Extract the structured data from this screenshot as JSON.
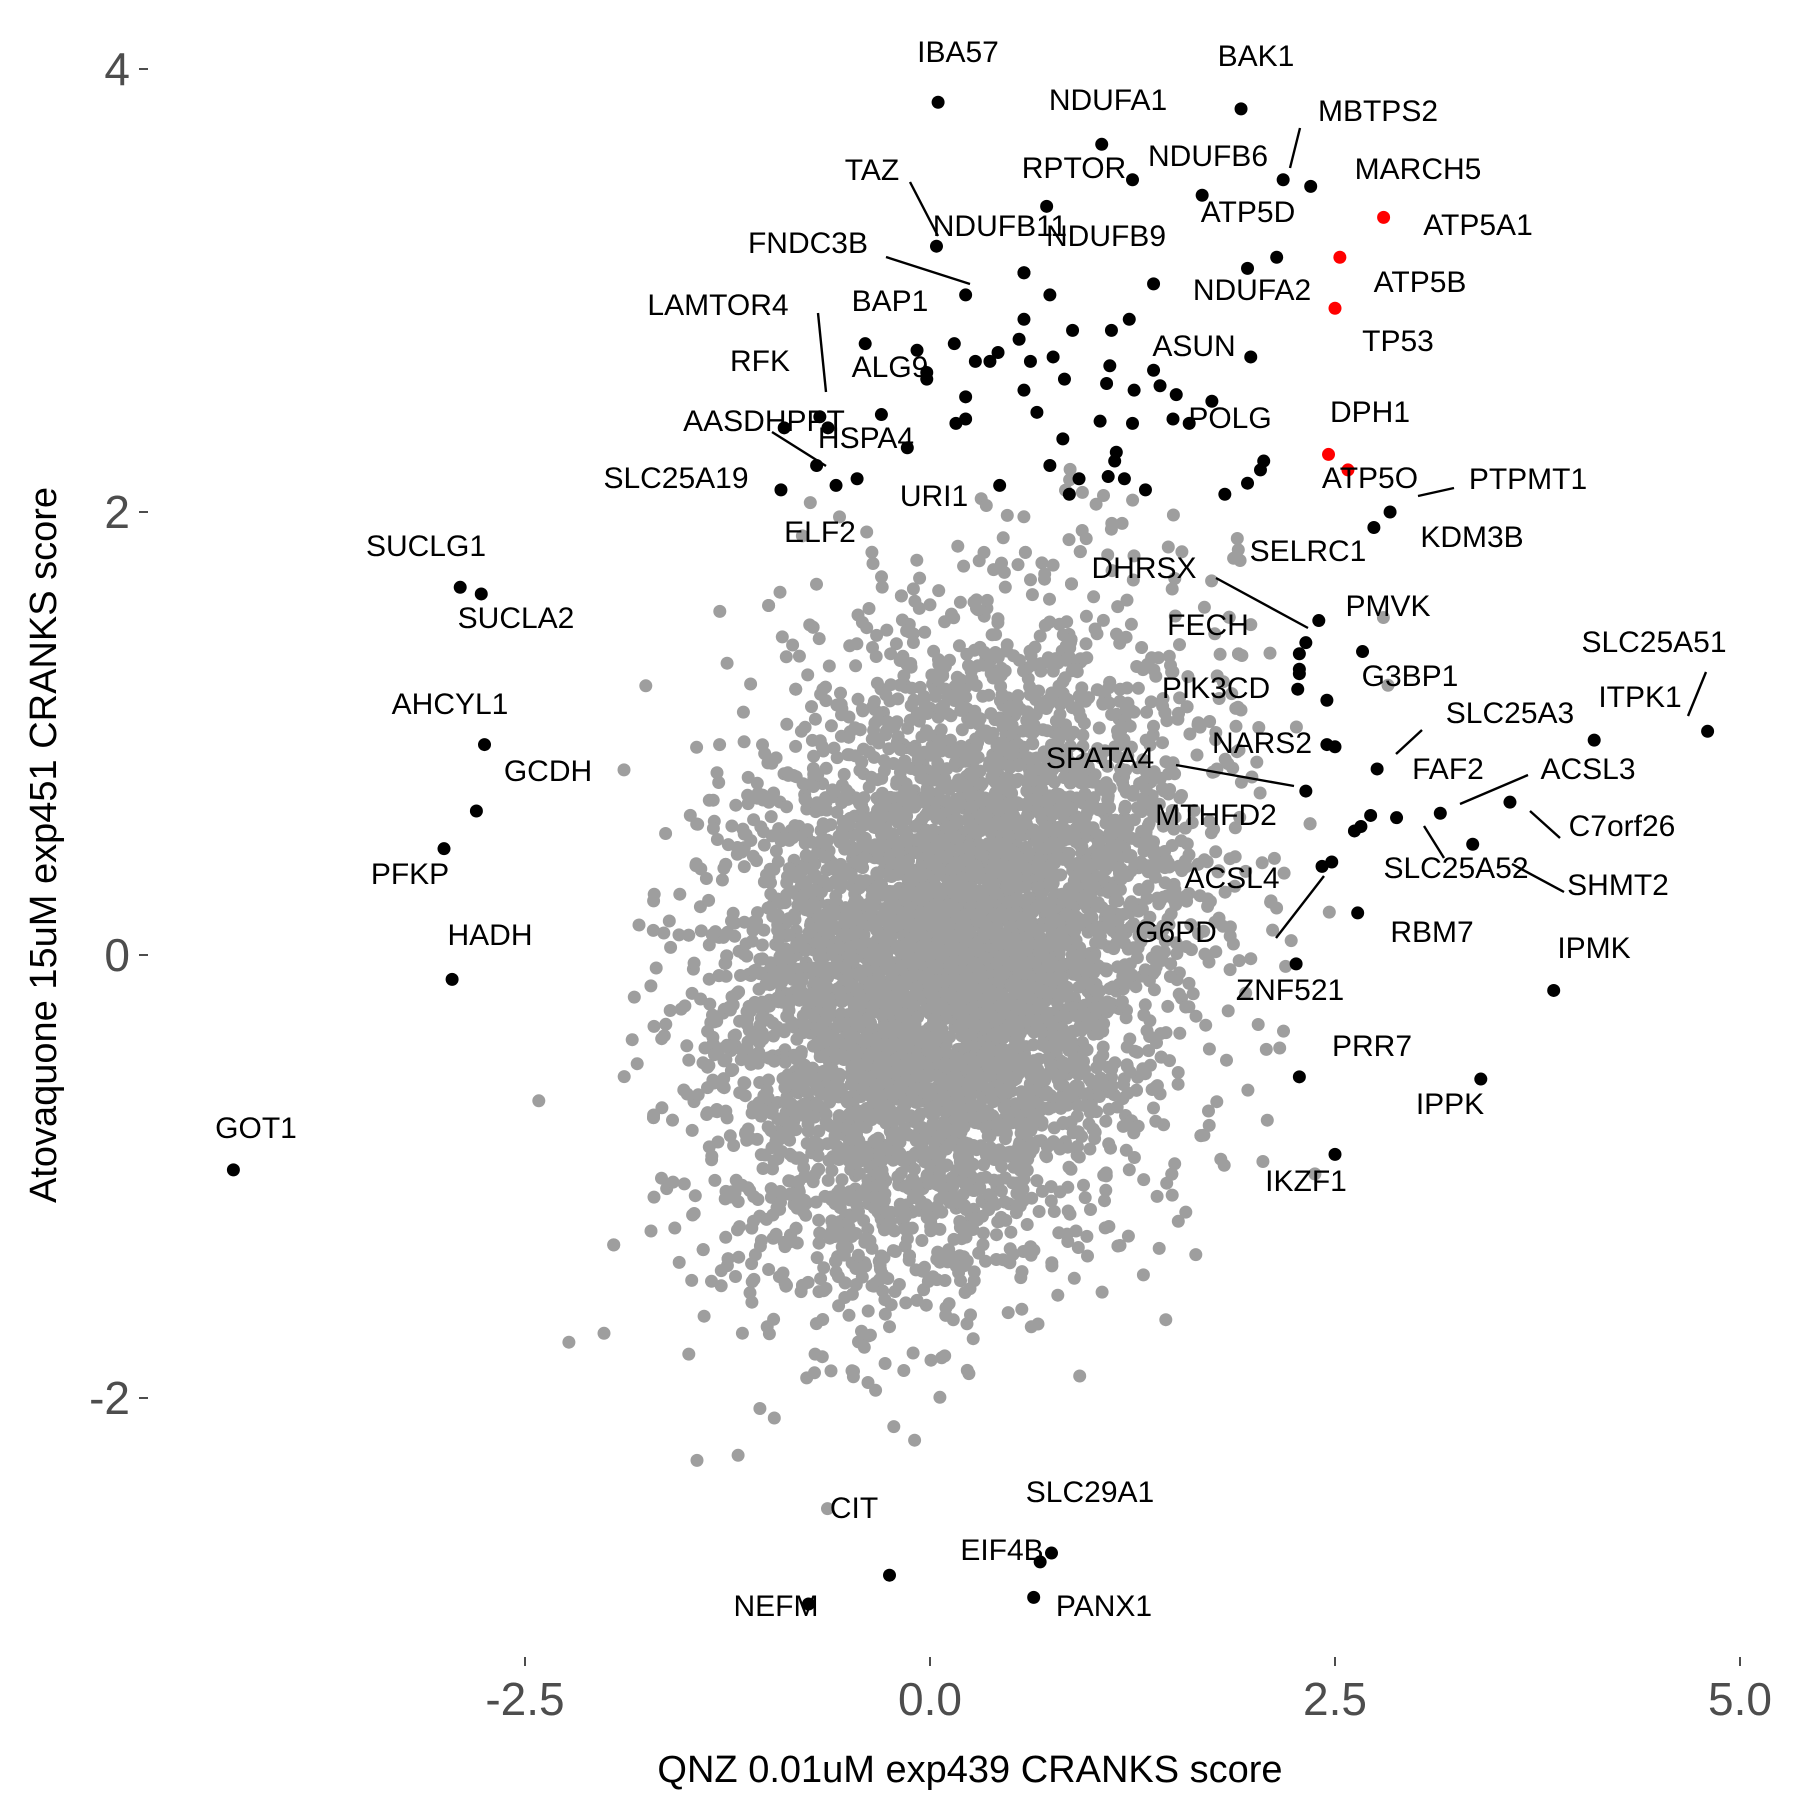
{
  "chart_data": {
    "type": "scatter",
    "xlabel": "QNZ 0.01uM exp439 CRANKS score",
    "ylabel": "Atovaquone 15uM exp451 CRANKS score",
    "xlim": [
      -4.6,
      5.1
    ],
    "ylim": [
      -3.25,
      4.3
    ],
    "xticks": [
      {
        "value": -2.5,
        "label": "-2.5"
      },
      {
        "value": 0,
        "label": "0.0"
      },
      {
        "value": 2.5,
        "label": "2.5"
      },
      {
        "value": 5,
        "label": "5.0"
      }
    ],
    "yticks": [
      {
        "value": -2,
        "label": "-2"
      },
      {
        "value": 0,
        "label": "0"
      },
      {
        "value": 2,
        "label": "2"
      },
      {
        "value": 4,
        "label": "4"
      }
    ],
    "grid": false,
    "legend": "none",
    "colors": {
      "background": "#ffffff",
      "bulk": "#9e9e9e",
      "highlight": "#000000",
      "accent": "#ff0000"
    },
    "background_cloud": {
      "description_of_distribution": "dense gray cloud of genes centred near (0.2, 0.0)",
      "center": [
        0.15,
        0.0
      ],
      "sd": [
        0.7,
        0.7
      ],
      "correlation": 0.25,
      "n": 6000
    },
    "labeled_points": [
      {
        "gene": "IBA57",
        "x": 0.05,
        "y": 3.85,
        "color": "black"
      },
      {
        "gene": "BAK1",
        "x": 1.92,
        "y": 3.82,
        "color": "black"
      },
      {
        "gene": "NDUFA1",
        "x": 1.06,
        "y": 3.66,
        "color": "black"
      },
      {
        "gene": "MBTPS2",
        "x": 2.18,
        "y": 3.5,
        "color": "black"
      },
      {
        "gene": "NDUFB6",
        "x": 1.68,
        "y": 3.43,
        "color": "black"
      },
      {
        "gene": "MARCH5",
        "x": 2.35,
        "y": 3.47,
        "color": "black"
      },
      {
        "gene": "TAZ",
        "x": 0.04,
        "y": 3.2,
        "color": "black"
      },
      {
        "gene": "RPTOR",
        "x": 0.72,
        "y": 3.38,
        "color": "black"
      },
      {
        "gene": "ATP5A1",
        "x": 2.8,
        "y": 3.33,
        "color": "red"
      },
      {
        "gene": "ATP5D",
        "x": 2.14,
        "y": 3.15,
        "color": "black"
      },
      {
        "gene": "NDUFB11",
        "x": 0.58,
        "y": 3.08,
        "color": "black"
      },
      {
        "gene": "NDUFB9",
        "x": 1.38,
        "y": 3.03,
        "color": "black"
      },
      {
        "gene": "FNDC3B",
        "x": 0.22,
        "y": 2.98,
        "color": "black"
      },
      {
        "gene": "ATP5B",
        "x": 2.53,
        "y": 3.15,
        "color": "red"
      },
      {
        "gene": "NDUFA2",
        "x": 1.96,
        "y": 3.1,
        "color": "black"
      },
      {
        "gene": "TP53",
        "x": 2.5,
        "y": 2.92,
        "color": "red"
      },
      {
        "gene": "LAMTOR4",
        "x": -0.63,
        "y": 2.38,
        "color": "black"
      },
      {
        "gene": "BAP1",
        "x": -0.4,
        "y": 2.76,
        "color": "black"
      },
      {
        "gene": "ASUN",
        "x": 1.98,
        "y": 2.7,
        "color": "black"
      },
      {
        "gene": "RFK",
        "x": -0.68,
        "y": 2.43,
        "color": "black"
      },
      {
        "gene": "ALG9",
        "x": -0.02,
        "y": 2.6,
        "color": "black"
      },
      {
        "gene": "POLG",
        "x": 1.6,
        "y": 2.4,
        "color": "black"
      },
      {
        "gene": "AASDHPPT",
        "x": -0.9,
        "y": 2.38,
        "color": "black"
      },
      {
        "gene": "HSPA4",
        "x": -0.7,
        "y": 2.21,
        "color": "black"
      },
      {
        "gene": "DPH1",
        "x": 2.46,
        "y": 2.26,
        "color": "red"
      },
      {
        "gene": "SLC25A19",
        "x": -0.92,
        "y": 2.1,
        "color": "black"
      },
      {
        "gene": "URI1",
        "x": -0.45,
        "y": 2.15,
        "color": "black"
      },
      {
        "gene": "ATP5O",
        "x": 2.58,
        "y": 2.19,
        "color": "red"
      },
      {
        "gene": "PTPMT1",
        "x": 2.84,
        "y": 2.0,
        "color": "black"
      },
      {
        "gene": "KDM3B",
        "x": 2.74,
        "y": 1.93,
        "color": "black"
      },
      {
        "gene": "ELF2",
        "x": -0.58,
        "y": 2.12,
        "color": "black"
      },
      {
        "gene": "SUCLG1",
        "x": -2.9,
        "y": 1.66,
        "color": "black"
      },
      {
        "gene": "SUCLA2",
        "x": -2.77,
        "y": 1.63,
        "color": "black"
      },
      {
        "gene": "SELRC1",
        "x": 2.4,
        "y": 1.51,
        "color": "black"
      },
      {
        "gene": "DHRSX",
        "x": 2.32,
        "y": 1.41,
        "color": "black"
      },
      {
        "gene": "PMVK",
        "x": 2.67,
        "y": 1.37,
        "color": "black"
      },
      {
        "gene": "FECH",
        "x": 2.28,
        "y": 1.27,
        "color": "black"
      },
      {
        "gene": "SLC25A51",
        "x": 4.8,
        "y": 1.01,
        "color": "black"
      },
      {
        "gene": "G3BP1",
        "x": 2.45,
        "y": 1.15,
        "color": "black"
      },
      {
        "gene": "PIK3CD",
        "x": 2.27,
        "y": 1.2,
        "color": "black"
      },
      {
        "gene": "ITPK1",
        "x": 4.1,
        "y": 0.97,
        "color": "black"
      },
      {
        "gene": "AHCYL1",
        "x": -2.75,
        "y": 0.95,
        "color": "black"
      },
      {
        "gene": "SLC25A3",
        "x": 2.76,
        "y": 0.84,
        "color": "black"
      },
      {
        "gene": "NARS2",
        "x": 2.5,
        "y": 0.94,
        "color": "black"
      },
      {
        "gene": "SPATA4",
        "x": 2.32,
        "y": 0.74,
        "color": "black"
      },
      {
        "gene": "ACSL3",
        "x": 3.58,
        "y": 0.69,
        "color": "black"
      },
      {
        "gene": "GCDH",
        "x": -2.8,
        "y": 0.65,
        "color": "black"
      },
      {
        "gene": "FAF2",
        "x": 3.15,
        "y": 0.64,
        "color": "black"
      },
      {
        "gene": "C7orf26",
        "x": 2.88,
        "y": 0.62,
        "color": "black"
      },
      {
        "gene": "MTHFD2",
        "x": 2.62,
        "y": 0.56,
        "color": "black"
      },
      {
        "gene": "PFKP",
        "x": -3.0,
        "y": 0.48,
        "color": "black"
      },
      {
        "gene": "SHMT2",
        "x": 3.35,
        "y": 0.5,
        "color": "black"
      },
      {
        "gene": "SLC25A52",
        "x": 2.72,
        "y": 0.63,
        "color": "black"
      },
      {
        "gene": "ACSL4",
        "x": 2.48,
        "y": 0.42,
        "color": "black"
      },
      {
        "gene": "RBM7",
        "x": 2.64,
        "y": 0.19,
        "color": "black"
      },
      {
        "gene": "G6PD",
        "x": 2.42,
        "y": 0.4,
        "color": "black"
      },
      {
        "gene": "HADH",
        "x": -2.95,
        "y": -0.11,
        "color": "black"
      },
      {
        "gene": "IPMK",
        "x": 3.85,
        "y": -0.16,
        "color": "black"
      },
      {
        "gene": "ZNF521",
        "x": 2.26,
        "y": -0.04,
        "color": "black"
      },
      {
        "gene": "PRR7",
        "x": 2.28,
        "y": -0.55,
        "color": "black"
      },
      {
        "gene": "IPPK",
        "x": 3.4,
        "y": -0.56,
        "color": "black"
      },
      {
        "gene": "GOT1",
        "x": -4.3,
        "y": -0.97,
        "color": "black"
      },
      {
        "gene": "IKZF1",
        "x": 2.5,
        "y": -0.9,
        "color": "black"
      },
      {
        "gene": "SLC29A1",
        "x": 0.75,
        "y": -2.7,
        "color": "black"
      },
      {
        "gene": "CIT",
        "x": -0.25,
        "y": -2.8,
        "color": "black"
      },
      {
        "gene": "EIF4B",
        "x": 0.68,
        "y": -2.74,
        "color": "black"
      },
      {
        "gene": "NEFM",
        "x": -0.75,
        "y": -2.93,
        "color": "black"
      },
      {
        "gene": "PANX1",
        "x": 0.64,
        "y": -2.9,
        "color": "black"
      }
    ],
    "unlabeled_highlight_points": [
      {
        "x": 1.25,
        "y": 3.5
      },
      {
        "x": 0.58,
        "y": 3.08
      },
      {
        "x": 0.74,
        "y": 2.98
      },
      {
        "x": 0.58,
        "y": 2.87
      },
      {
        "x": 0.88,
        "y": 2.82
      },
      {
        "x": 1.23,
        "y": 2.87
      },
      {
        "x": 0.55,
        "y": 2.78
      },
      {
        "x": 0.42,
        "y": 2.72
      },
      {
        "x": 0.37,
        "y": 2.68
      },
      {
        "x": 0.62,
        "y": 2.68
      },
      {
        "x": 0.76,
        "y": 2.7
      },
      {
        "x": 0.28,
        "y": 2.68
      },
      {
        "x": 0.58,
        "y": 2.55
      },
      {
        "x": 0.83,
        "y": 2.6
      },
      {
        "x": 1.11,
        "y": 2.66
      },
      {
        "x": 1.09,
        "y": 2.58
      },
      {
        "x": 0.22,
        "y": 2.52
      },
      {
        "x": 0.66,
        "y": 2.45
      },
      {
        "x": 1.26,
        "y": 2.55
      },
      {
        "x": 1.52,
        "y": 2.53
      },
      {
        "x": 1.74,
        "y": 2.5
      },
      {
        "x": 0.22,
        "y": 2.42
      },
      {
        "x": 0.16,
        "y": 2.4
      },
      {
        "x": 1.05,
        "y": 2.41
      },
      {
        "x": 1.25,
        "y": 2.4
      },
      {
        "x": 0.82,
        "y": 2.33
      },
      {
        "x": 1.15,
        "y": 2.27
      },
      {
        "x": 1.14,
        "y": 2.23
      },
      {
        "x": 2.06,
        "y": 2.23
      },
      {
        "x": 2.04,
        "y": 2.19
      },
      {
        "x": 0.74,
        "y": 2.21
      },
      {
        "x": 0.92,
        "y": 2.15
      },
      {
        "x": 1.1,
        "y": 2.16
      },
      {
        "x": 1.2,
        "y": 2.15
      },
      {
        "x": 1.33,
        "y": 2.1
      },
      {
        "x": 0.86,
        "y": 2.08
      },
      {
        "x": 0.43,
        "y": 2.12
      },
      {
        "x": 1.82,
        "y": 2.08
      },
      {
        "x": 1.96,
        "y": 2.13
      },
      {
        "x": -0.14,
        "y": 2.29
      },
      {
        "x": -0.3,
        "y": 2.44
      },
      {
        "x": -0.02,
        "y": 2.63
      },
      {
        "x": 1.38,
        "y": 2.64
      },
      {
        "x": 1.42,
        "y": 2.57
      },
      {
        "x": 1.5,
        "y": 2.42
      },
      {
        "x": 1.12,
        "y": 2.82
      },
      {
        "x": 0.15,
        "y": 2.76
      },
      {
        "x": -0.08,
        "y": 2.73
      },
      {
        "x": 2.28,
        "y": 1.36
      },
      {
        "x": 2.28,
        "y": 1.29
      },
      {
        "x": 2.45,
        "y": 0.95
      },
      {
        "x": 2.66,
        "y": 0.58
      }
    ]
  }
}
